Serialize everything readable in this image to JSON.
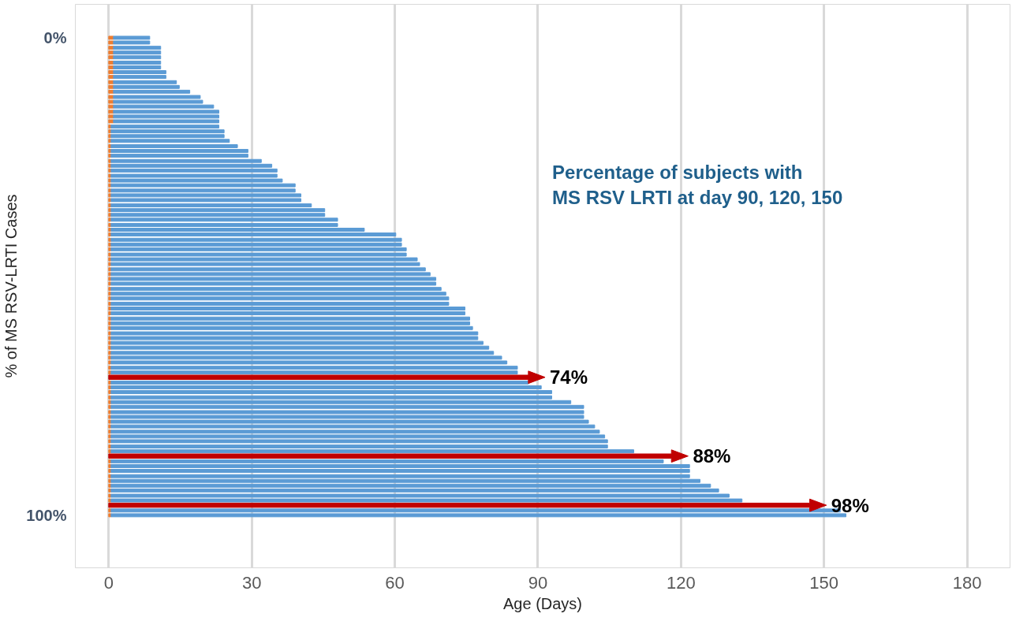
{
  "chart_data": {
    "type": "bar",
    "orientation": "horizontal",
    "xlabel": "Age (Days)",
    "ylabel": "% of MS RSV-LRTI Cases",
    "x": [
      0,
      1.0,
      2.1,
      3.1,
      4.1,
      5.2,
      6.2,
      7.2,
      8.2,
      9.3,
      10.3,
      11.3,
      12.4,
      13.4,
      14.4,
      15.5,
      16.5,
      17.5,
      18.6,
      19.6,
      20.6,
      21.6,
      22.7,
      23.7,
      24.7,
      25.8,
      26.8,
      27.8,
      28.9,
      29.9,
      30.9,
      32.0,
      33.0,
      34.0,
      35.1,
      36.1,
      37.1,
      38.1,
      39.2,
      40.2,
      41.2,
      42.3,
      43.3,
      44.3,
      45.4,
      46.4,
      47.4,
      48.5,
      49.5,
      50.5,
      51.5,
      52.6,
      53.6,
      54.6,
      55.7,
      56.7,
      57.7,
      58.8,
      59.8,
      60.8,
      61.9,
      62.9,
      63.9,
      64.9,
      66.0,
      67.0,
      68.0,
      69.1,
      70.1,
      71.1,
      72.2,
      73.2,
      74.2,
      75.3,
      76.3,
      77.3,
      78.4,
      79.4,
      80.4,
      81.4,
      82.5,
      83.5,
      84.5,
      85.6,
      86.6,
      87.6,
      88.7,
      89.7,
      90.7,
      91.8,
      92.8,
      93.8,
      94.8,
      95.9,
      96.9,
      97.9,
      99.0,
      100
    ],
    "series": [
      {
        "color": "#ed7d31",
        "values": [
          1,
          1,
          1,
          1,
          1,
          1,
          1,
          1,
          1,
          1,
          1,
          1,
          1,
          1,
          1,
          1,
          1,
          1,
          0.5,
          0.5,
          0.5,
          0.5,
          0.5,
          0.5,
          0.5,
          0.5,
          0.5,
          0.5,
          0.5,
          0.5,
          0.5,
          0.5,
          0.5,
          0.5,
          0.5,
          0.5,
          0.5,
          0.5,
          0.5,
          0.5,
          0.5,
          0.5,
          0.5,
          0.5,
          0.5,
          0.5,
          0.5,
          0.5,
          0.5,
          0.5,
          0.5,
          0.5,
          0.5,
          0.5,
          0.5,
          0.5,
          0.5,
          0.5,
          0.5,
          0.5,
          0.5,
          0.5,
          0.5,
          0.5,
          0.5,
          0.5,
          0.5,
          0.5,
          0.5,
          null,
          0.5,
          0.5,
          0.5,
          0.5,
          0.5,
          0.5,
          0.5,
          0.5,
          0.5,
          0.5,
          0.5,
          0.5,
          0.5,
          0.5,
          0.5,
          null,
          0.5,
          0.5,
          0.5,
          0.5,
          0.5,
          0.5,
          0.5,
          0.5,
          0.5,
          null,
          0.5,
          0.5
        ]
      },
      {
        "color": "#5b9bd5",
        "values": [
          7.6,
          7.6,
          9.9,
          9.9,
          9.9,
          9.9,
          9.9,
          11.0,
          11.0,
          13.2,
          13.8,
          16.0,
          18.2,
          18.7,
          21.0,
          22.1,
          22.1,
          22.1,
          22.6,
          23.7,
          23.7,
          24.8,
          26.5,
          28.7,
          28.7,
          31.5,
          33.7,
          34.8,
          34.8,
          35.9,
          38.6,
          38.6,
          39.8,
          39.8,
          42.0,
          44.8,
          44.8,
          47.5,
          47.5,
          53.1,
          59.7,
          60.9,
          60.9,
          61.9,
          61.9,
          64.2,
          64.7,
          65.9,
          66.9,
          68.1,
          68.1,
          69.2,
          70.2,
          70.8,
          70.8,
          74.2,
          74.2,
          75.2,
          75.2,
          75.8,
          76.9,
          76.9,
          78.0,
          79.2,
          80.2,
          81.9,
          83.0,
          85.2,
          85.2,
          null,
          87.5,
          90.2,
          92.4,
          92.4,
          96.4,
          99.1,
          99.1,
          99.1,
          100.1,
          101.4,
          102.4,
          103.5,
          104.1,
          104.1,
          109.6,
          null,
          115.8,
          121.3,
          121.3,
          121.3,
          123.5,
          125.7,
          127.4,
          129.6,
          132.3,
          null,
          152.9,
          154.1
        ]
      }
    ],
    "stacked": true,
    "xlim": [
      -7,
      189
    ],
    "xticks": [
      0,
      30,
      60,
      90,
      120,
      150,
      180
    ],
    "ylim": [
      111,
      -7
    ],
    "yticks": [
      {
        "value": 0,
        "label": "0%"
      },
      {
        "value": 100,
        "label": "100%"
      }
    ],
    "grid": "x",
    "annotations": [
      "Percentage of subjects with\nMS RSV LRTI at day 90, 120, 150",
      "74%",
      "88%",
      "98%"
    ]
  }
}
